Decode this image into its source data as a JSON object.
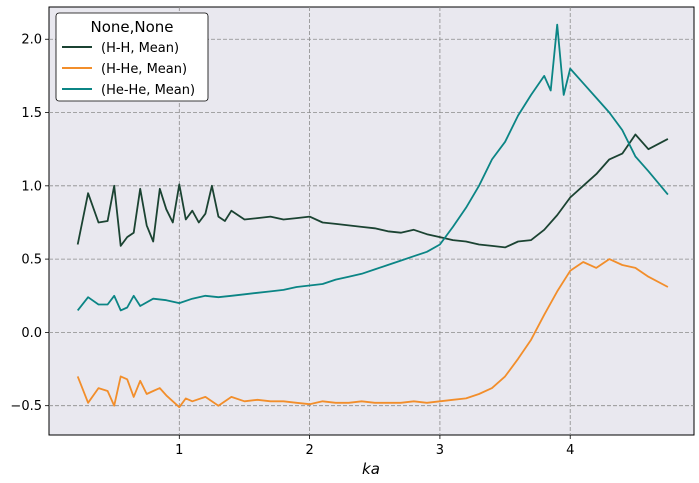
{
  "chart_data": {
    "type": "line",
    "xlabel": "ka",
    "ylabel": "",
    "xlim": [
      0.0,
      4.95
    ],
    "ylim": [
      -0.7,
      2.22
    ],
    "xticks": [
      1,
      2,
      3,
      4
    ],
    "yticks": [
      -0.5,
      0.0,
      0.5,
      1.0,
      1.5,
      2.0
    ],
    "xtick_labels": [
      "1",
      "2",
      "3",
      "4"
    ],
    "ytick_labels": [
      "−0.5",
      "0.0",
      "0.5",
      "1.0",
      "1.5",
      "2.0"
    ],
    "grid": true,
    "legend": {
      "title": "None,None",
      "placement": "top-left"
    },
    "series": [
      {
        "name": "(H-H, Mean)",
        "color": "#1b4332",
        "x": [
          0.22,
          0.3,
          0.38,
          0.45,
          0.5,
          0.55,
          0.6,
          0.65,
          0.7,
          0.75,
          0.8,
          0.85,
          0.9,
          0.95,
          1.0,
          1.05,
          1.1,
          1.15,
          1.2,
          1.25,
          1.3,
          1.35,
          1.4,
          1.5,
          1.6,
          1.7,
          1.8,
          1.9,
          2.0,
          2.1,
          2.2,
          2.3,
          2.4,
          2.5,
          2.6,
          2.7,
          2.8,
          2.9,
          3.0,
          3.1,
          3.2,
          3.3,
          3.4,
          3.5,
          3.6,
          3.7,
          3.8,
          3.9,
          4.0,
          4.1,
          4.2,
          4.3,
          4.4,
          4.5,
          4.6,
          4.75
        ],
        "y": [
          0.6,
          0.95,
          0.75,
          0.76,
          1.0,
          0.59,
          0.65,
          0.68,
          0.98,
          0.73,
          0.62,
          0.98,
          0.84,
          0.75,
          1.01,
          0.77,
          0.83,
          0.75,
          0.81,
          1.0,
          0.79,
          0.76,
          0.83,
          0.77,
          0.78,
          0.79,
          0.77,
          0.78,
          0.79,
          0.75,
          0.74,
          0.73,
          0.72,
          0.71,
          0.69,
          0.68,
          0.7,
          0.67,
          0.65,
          0.63,
          0.62,
          0.6,
          0.59,
          0.58,
          0.62,
          0.63,
          0.7,
          0.8,
          0.92,
          1.0,
          1.08,
          1.18,
          1.22,
          1.35,
          1.25,
          1.32
        ]
      },
      {
        "name": "(H-He, Mean)",
        "color": "#f28e2b",
        "x": [
          0.22,
          0.3,
          0.38,
          0.45,
          0.5,
          0.55,
          0.6,
          0.65,
          0.7,
          0.75,
          0.8,
          0.85,
          0.9,
          0.95,
          1.0,
          1.05,
          1.1,
          1.2,
          1.3,
          1.4,
          1.5,
          1.6,
          1.7,
          1.8,
          1.9,
          2.0,
          2.1,
          2.2,
          2.3,
          2.4,
          2.5,
          2.6,
          2.7,
          2.8,
          2.9,
          3.0,
          3.1,
          3.2,
          3.3,
          3.4,
          3.5,
          3.6,
          3.7,
          3.8,
          3.9,
          4.0,
          4.1,
          4.2,
          4.3,
          4.4,
          4.5,
          4.6,
          4.75
        ],
        "y": [
          -0.3,
          -0.48,
          -0.38,
          -0.4,
          -0.5,
          -0.3,
          -0.32,
          -0.44,
          -0.33,
          -0.42,
          -0.4,
          -0.38,
          -0.43,
          -0.47,
          -0.51,
          -0.45,
          -0.47,
          -0.44,
          -0.5,
          -0.44,
          -0.47,
          -0.46,
          -0.47,
          -0.47,
          -0.48,
          -0.49,
          -0.47,
          -0.48,
          -0.48,
          -0.47,
          -0.48,
          -0.48,
          -0.48,
          -0.47,
          -0.48,
          -0.47,
          -0.46,
          -0.45,
          -0.42,
          -0.38,
          -0.3,
          -0.18,
          -0.05,
          0.12,
          0.28,
          0.42,
          0.48,
          0.44,
          0.5,
          0.46,
          0.44,
          0.38,
          0.31
        ]
      },
      {
        "name": "(He-He, Mean)",
        "color": "#0b8585",
        "x": [
          0.22,
          0.3,
          0.38,
          0.45,
          0.5,
          0.55,
          0.6,
          0.65,
          0.7,
          0.8,
          0.9,
          1.0,
          1.1,
          1.2,
          1.3,
          1.4,
          1.5,
          1.6,
          1.7,
          1.8,
          1.9,
          2.0,
          2.1,
          2.2,
          2.3,
          2.4,
          2.5,
          2.6,
          2.7,
          2.8,
          2.9,
          3.0,
          3.1,
          3.2,
          3.3,
          3.4,
          3.5,
          3.6,
          3.7,
          3.8,
          3.85,
          3.9,
          3.95,
          4.0,
          4.1,
          4.2,
          4.3,
          4.4,
          4.5,
          4.6,
          4.75
        ],
        "y": [
          0.15,
          0.24,
          0.19,
          0.19,
          0.25,
          0.15,
          0.17,
          0.25,
          0.18,
          0.23,
          0.22,
          0.2,
          0.23,
          0.25,
          0.24,
          0.25,
          0.26,
          0.27,
          0.28,
          0.29,
          0.31,
          0.32,
          0.33,
          0.36,
          0.38,
          0.4,
          0.43,
          0.46,
          0.49,
          0.52,
          0.55,
          0.6,
          0.72,
          0.85,
          1.0,
          1.18,
          1.3,
          1.48,
          1.62,
          1.75,
          1.65,
          2.1,
          1.62,
          1.8,
          1.7,
          1.6,
          1.5,
          1.38,
          1.2,
          1.1,
          0.94
        ]
      }
    ]
  }
}
